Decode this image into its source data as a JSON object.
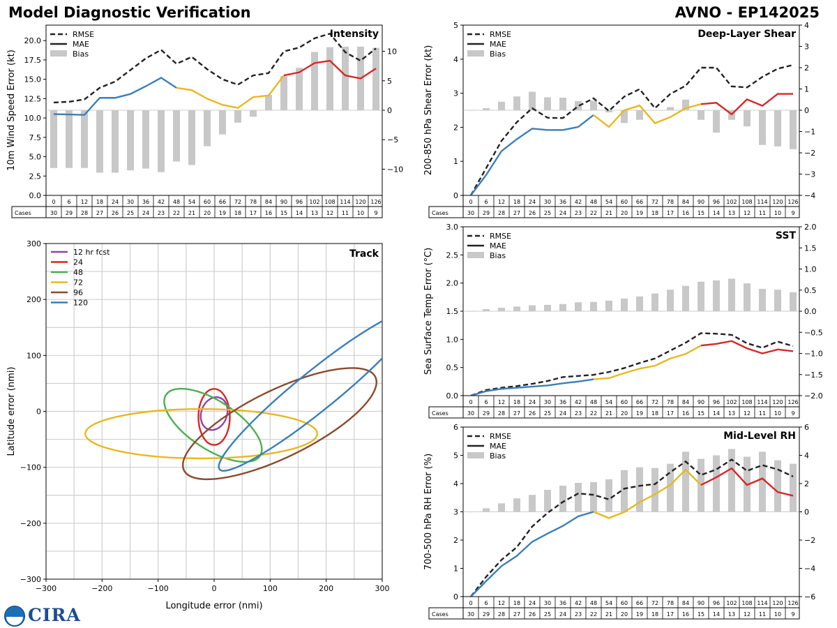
{
  "header": {
    "title_left": "Model Diagnostic Verification",
    "title_right": "AVNO - EP142025"
  },
  "logo": {
    "text": "CIRA"
  },
  "colors": {
    "rmse": "#222222",
    "mae_early": "#3a7fb8",
    "mae_mid": "#e8b820",
    "mae_late": "#d62728",
    "bias": "#c8c8c8",
    "grid": "#cfcfcf",
    "track": [
      "#8e44ad",
      "#d62728",
      "#4caf50",
      "#e8b820",
      "#8b4a2b",
      "#3a7fb8"
    ]
  },
  "legend": {
    "rmse": "RMSE",
    "mae": "MAE",
    "bias": "Bias"
  },
  "table": {
    "lead_times": [
      "0",
      "6",
      "12",
      "18",
      "24",
      "30",
      "36",
      "42",
      "48",
      "54",
      "60",
      "66",
      "72",
      "78",
      "84",
      "90",
      "96",
      "102",
      "108",
      "114",
      "120",
      "126"
    ],
    "cases_label": "Cases",
    "cases": [
      "30",
      "29",
      "28",
      "27",
      "26",
      "25",
      "24",
      "23",
      "22",
      "21",
      "20",
      "19",
      "18",
      "17",
      "16",
      "15",
      "14",
      "13",
      "12",
      "11",
      "10",
      "9"
    ]
  },
  "chart_data": [
    {
      "id": "intensity",
      "type": "line",
      "title": "Intensity",
      "ylabel": "10m Wind Speed Error (kt)",
      "ylim": [
        0,
        22
      ],
      "yticks": [
        "0.0",
        "2.5",
        "5.0",
        "7.5",
        "10.0",
        "12.5",
        "15.0",
        "17.5",
        "20.0"
      ],
      "y2lim": [
        -14.45,
        14.45
      ],
      "y2ticks": [
        "−10",
        "−5",
        "0",
        "5",
        "10"
      ],
      "x": [
        0,
        6,
        12,
        18,
        24,
        30,
        36,
        42,
        48,
        54,
        60,
        66,
        72,
        78,
        84,
        90,
        96,
        102,
        108,
        114,
        120,
        126
      ],
      "rmse": [
        12.0,
        12.1,
        12.4,
        13.9,
        14.7,
        16.2,
        17.7,
        18.8,
        17.0,
        17.9,
        16.3,
        15.0,
        14.3,
        15.5,
        15.8,
        18.6,
        19.1,
        20.3,
        20.9,
        18.5,
        17.4,
        19.0
      ],
      "mae": [
        10.5,
        10.45,
        10.4,
        12.6,
        12.6,
        13.1,
        14.1,
        15.2,
        13.9,
        13.6,
        12.5,
        11.7,
        11.3,
        12.7,
        12.9,
        15.5,
        15.9,
        17.1,
        17.4,
        15.5,
        15.1,
        16.4
      ],
      "bias": [
        -9.8,
        -9.8,
        -9.8,
        -10.6,
        -10.6,
        -10.2,
        -9.9,
        -10.5,
        -8.7,
        -9.3,
        -6.1,
        -4.1,
        -2.1,
        -1.1,
        2.6,
        5.8,
        7.2,
        9.9,
        10.7,
        10.8,
        10.8,
        10.6
      ]
    },
    {
      "id": "shear",
      "type": "line",
      "title": "Deep-Layer Shear",
      "ylabel": "200-850 hPa Shear Error (kt)",
      "ylim": [
        0,
        5
      ],
      "yticks": [
        "0",
        "1",
        "2",
        "3",
        "4",
        "5"
      ],
      "y2lim": [
        -4,
        4
      ],
      "y2ticks": [
        "−4",
        "−3",
        "−2",
        "−1",
        "0",
        "1",
        "2",
        "3",
        "4"
      ],
      "x": [
        0,
        6,
        12,
        18,
        24,
        30,
        36,
        42,
        48,
        54,
        60,
        66,
        72,
        78,
        84,
        90,
        96,
        102,
        108,
        114,
        120,
        126
      ],
      "rmse": [
        0.0,
        0.8,
        1.6,
        2.15,
        2.56,
        2.28,
        2.27,
        2.62,
        2.85,
        2.48,
        2.9,
        3.12,
        2.56,
        2.98,
        3.22,
        3.75,
        3.75,
        3.2,
        3.17,
        3.48,
        3.72,
        3.83
      ],
      "mae": [
        0.0,
        0.6,
        1.3,
        1.65,
        1.96,
        1.92,
        1.92,
        2.01,
        2.36,
        2.01,
        2.5,
        2.64,
        2.12,
        2.3,
        2.56,
        2.68,
        2.72,
        2.38,
        2.82,
        2.63,
        2.98,
        2.98
      ],
      "bias": [
        0.0,
        0.1,
        0.4,
        0.65,
        0.87,
        0.61,
        0.59,
        0.43,
        0.45,
        -0.1,
        -0.6,
        -0.45,
        0.0,
        0.15,
        0.5,
        -0.45,
        -1.05,
        -0.45,
        -0.76,
        -1.63,
        -1.7,
        -1.83
      ]
    },
    {
      "id": "sst",
      "type": "line",
      "title": "SST",
      "ylabel": "Sea Surface Temp Error (°C)",
      "ylim": [
        0,
        3
      ],
      "yticks": [
        "0.0",
        "0.5",
        "1.0",
        "1.5",
        "2.0",
        "2.5",
        "3.0"
      ],
      "y2lim": [
        -2,
        2
      ],
      "y2ticks": [
        "−2.0",
        "−1.5",
        "−1.0",
        "−0.5",
        "0.0",
        "0.5",
        "1.0",
        "1.5",
        "2.0"
      ],
      "x": [
        0,
        6,
        12,
        18,
        24,
        30,
        36,
        42,
        48,
        54,
        60,
        66,
        72,
        78,
        84,
        90,
        96,
        102,
        108,
        114,
        120,
        126
      ],
      "rmse": [
        0.0,
        0.1,
        0.14,
        0.17,
        0.21,
        0.26,
        0.33,
        0.35,
        0.37,
        0.42,
        0.49,
        0.58,
        0.66,
        0.8,
        0.94,
        1.11,
        1.1,
        1.08,
        0.93,
        0.85,
        0.96,
        0.88
      ],
      "mae": [
        0.0,
        0.08,
        0.12,
        0.14,
        0.16,
        0.18,
        0.22,
        0.25,
        0.29,
        0.31,
        0.4,
        0.48,
        0.53,
        0.66,
        0.74,
        0.89,
        0.92,
        0.97,
        0.84,
        0.75,
        0.82,
        0.79
      ],
      "bias": [
        0.0,
        0.05,
        0.08,
        0.11,
        0.14,
        0.15,
        0.17,
        0.21,
        0.22,
        0.25,
        0.3,
        0.35,
        0.42,
        0.51,
        0.6,
        0.7,
        0.73,
        0.77,
        0.66,
        0.53,
        0.51,
        0.45
      ]
    },
    {
      "id": "rh",
      "type": "line",
      "title": "Mid-Level RH",
      "ylabel": "700-500 hPa RH Error (%)",
      "ylim": [
        0,
        6
      ],
      "yticks": [
        "0",
        "1",
        "2",
        "3",
        "4",
        "5",
        "6"
      ],
      "y2lim": [
        -6,
        6
      ],
      "y2ticks": [
        "−6",
        "−4",
        "−2",
        "0",
        "2",
        "4",
        "6"
      ],
      "x": [
        0,
        6,
        12,
        18,
        24,
        30,
        36,
        42,
        48,
        54,
        60,
        66,
        72,
        78,
        84,
        90,
        96,
        102,
        108,
        114,
        120,
        126
      ],
      "rmse": [
        0.0,
        0.7,
        1.3,
        1.75,
        2.48,
        2.96,
        3.35,
        3.65,
        3.6,
        3.44,
        3.82,
        3.92,
        3.98,
        4.4,
        4.78,
        4.3,
        4.5,
        4.85,
        4.45,
        4.65,
        4.5,
        4.25
      ],
      "mae": [
        0.0,
        0.55,
        1.08,
        1.44,
        1.94,
        2.23,
        2.5,
        2.84,
        3.0,
        2.78,
        2.99,
        3.34,
        3.62,
        3.95,
        4.49,
        3.95,
        4.22,
        4.54,
        3.95,
        4.18,
        3.7,
        3.57
      ],
      "bias": [
        0.0,
        0.25,
        0.6,
        0.95,
        1.2,
        1.55,
        1.85,
        2.05,
        2.1,
        2.3,
        2.95,
        3.15,
        3.1,
        3.4,
        4.25,
        3.75,
        4.0,
        4.45,
        3.9,
        4.25,
        3.65,
        3.4
      ]
    },
    {
      "id": "track",
      "type": "ellipse",
      "title": "Track",
      "xlabel": "Longitude error (nmi)",
      "ylabel": "Latitude error (nmi)",
      "xlim": [
        -300,
        300
      ],
      "ylim": [
        -300,
        300
      ],
      "xticks": [
        "−300",
        "−200",
        "−100",
        "0",
        "100",
        "200",
        "300"
      ],
      "yticks": [
        "−300",
        "−200",
        "−100",
        "0",
        "100",
        "200",
        "300"
      ],
      "legend": [
        "12 hr fcst",
        "24",
        "48",
        "72",
        "96",
        "120"
      ],
      "ellipses": [
        {
          "label": "12 hr fcst",
          "cx": 0,
          "cy": -4,
          "rx": 30,
          "ry": 23,
          "angle": 70
        },
        {
          "label": "24",
          "cx": 0,
          "cy": -10,
          "rx": 50,
          "ry": 28,
          "angle": 90
        },
        {
          "label": "48",
          "cx": -2,
          "cy": -25,
          "rx": 100,
          "ry": 43,
          "angle": -33
        },
        {
          "label": "72",
          "cx": -23,
          "cy": -40,
          "rx": 207,
          "ry": 44,
          "angle": 0
        },
        {
          "label": "96",
          "cx": 117,
          "cy": -22,
          "rx": 190,
          "ry": 60,
          "angle": 26
        },
        {
          "label": "120",
          "cx": 183,
          "cy": 37,
          "rx": 223,
          "ry": 35,
          "angle": 39
        }
      ]
    }
  ]
}
